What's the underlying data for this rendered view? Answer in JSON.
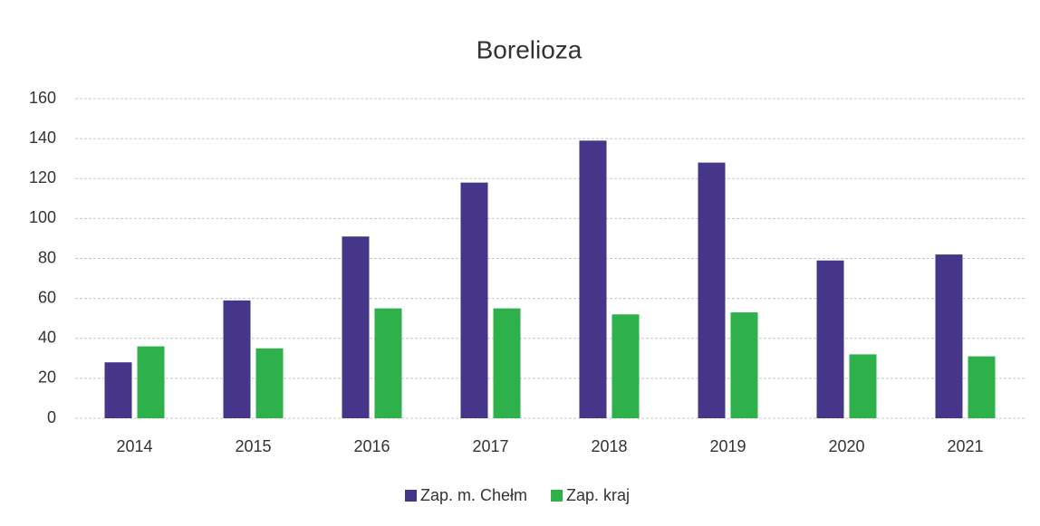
{
  "chart_data": {
    "type": "bar",
    "title": "Borelioza",
    "categories": [
      "2014",
      "2015",
      "2016",
      "2017",
      "2018",
      "2019",
      "2020",
      "2021"
    ],
    "series": [
      {
        "name": "Zap. m. Chełm",
        "color": "#46368a",
        "values": [
          28,
          59,
          91,
          118,
          139,
          128,
          79,
          82
        ]
      },
      {
        "name": "Zap. kraj",
        "color": "#2eb04b",
        "values": [
          36,
          35,
          55,
          55,
          52,
          53,
          32,
          31
        ]
      }
    ],
    "ylim": [
      0,
      160
    ],
    "yticks": [
      0,
      20,
      40,
      60,
      80,
      100,
      120,
      140,
      160
    ],
    "grid": true,
    "legend": "bottom"
  }
}
